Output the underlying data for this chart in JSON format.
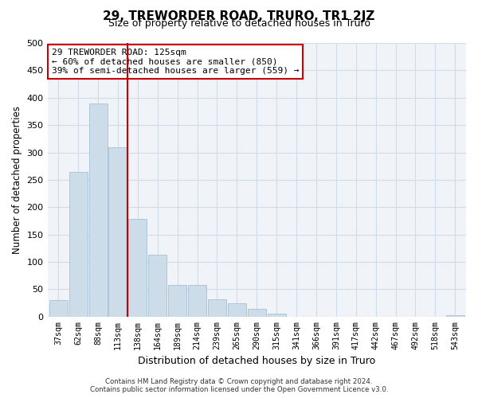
{
  "title": "29, TREWORDER ROAD, TRURO, TR1 2JZ",
  "subtitle": "Size of property relative to detached houses in Truro",
  "xlabel": "Distribution of detached houses by size in Truro",
  "ylabel": "Number of detached properties",
  "bar_labels": [
    "37sqm",
    "62sqm",
    "88sqm",
    "113sqm",
    "138sqm",
    "164sqm",
    "189sqm",
    "214sqm",
    "239sqm",
    "265sqm",
    "290sqm",
    "315sqm",
    "341sqm",
    "366sqm",
    "391sqm",
    "417sqm",
    "442sqm",
    "467sqm",
    "492sqm",
    "518sqm",
    "543sqm"
  ],
  "bar_values": [
    30,
    265,
    390,
    310,
    178,
    113,
    58,
    58,
    32,
    25,
    14,
    6,
    0,
    0,
    0,
    0,
    0,
    0,
    0,
    0,
    3
  ],
  "bar_color": "#ccdce8",
  "bar_edge_color": "#a8c0d4",
  "vline_x": 3.5,
  "vline_color": "#cc0000",
  "ylim": [
    0,
    500
  ],
  "yticks": [
    0,
    50,
    100,
    150,
    200,
    250,
    300,
    350,
    400,
    450,
    500
  ],
  "annotation_title": "29 TREWORDER ROAD: 125sqm",
  "annotation_line1": "← 60% of detached houses are smaller (850)",
  "annotation_line2": "39% of semi-detached houses are larger (559) →",
  "footer_line1": "Contains HM Land Registry data © Crown copyright and database right 2024.",
  "footer_line2": "Contains public sector information licensed under the Open Government Licence v3.0.",
  "grid_color": "#d0dce8",
  "background_color": "#ffffff",
  "plot_bg_color": "#f0f4f8"
}
